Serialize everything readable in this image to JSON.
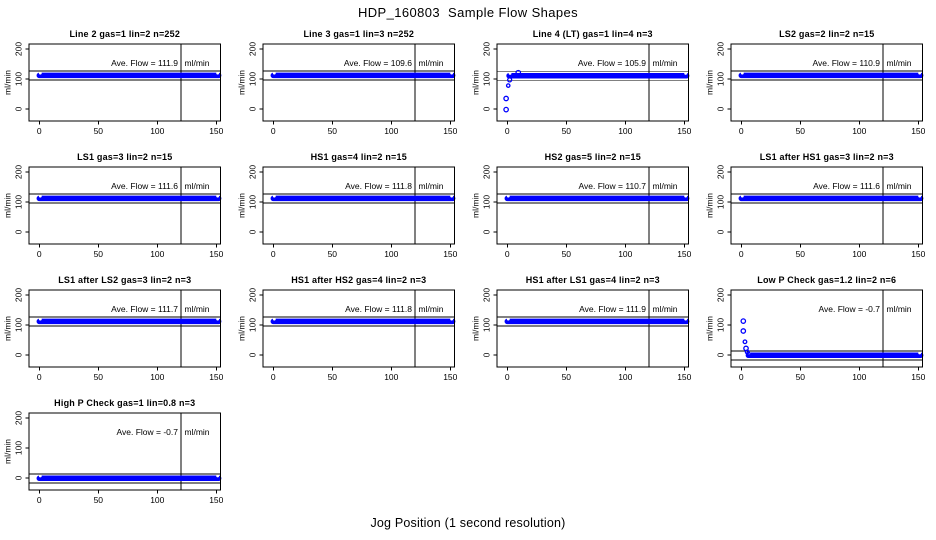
{
  "page": {
    "title": "HDP_160803  Sample Flow Shapes",
    "xlabel": "Jog Position (1 second resolution)"
  },
  "colors": {
    "points": "#0000ff",
    "axis": "#000000",
    "background": "#ffffff",
    "text": "#000000"
  },
  "subplot_defaults": {
    "ylabel": "ml/min",
    "unit": "ml/min",
    "annotation_label": "Ave. Flow =",
    "x_ticks": [
      0,
      50,
      100,
      150
    ],
    "y_ticks": [
      0,
      100,
      200
    ],
    "vline_x": 120,
    "xlim": [
      -8,
      153
    ],
    "ylim": [
      -45,
      217
    ],
    "xlabel": "Jog Position (1 second resolution)"
  },
  "chart_data": [
    {
      "type": "scatter",
      "title": "Line 2 gas=1 lin=2 n=252",
      "ave_flow": "111.9",
      "band": {
        "x_start": 0,
        "x_end": 152,
        "level": 112
      },
      "points": []
    },
    {
      "type": "scatter",
      "title": "Line 3 gas=1 lin=3 n=252",
      "ave_flow": "109.6",
      "band": {
        "x_start": 0,
        "x_end": 152,
        "level": 112
      },
      "points": []
    },
    {
      "type": "scatter",
      "title": "Line 4 (LT) gas=1 lin=4 n=3",
      "ave_flow": "105.9",
      "band": {
        "x_start": 1.5,
        "x_end": 152,
        "level": 111
      },
      "points": [
        [
          -1,
          -2
        ],
        [
          -1,
          35
        ],
        [
          0.8,
          78,
          1.7
        ],
        [
          2,
          97,
          2
        ],
        [
          9.3,
          121
        ]
      ]
    },
    {
      "type": "scatter",
      "title": "LS2 gas=2 lin=2 n=15",
      "ave_flow": "110.9",
      "band": {
        "x_start": 0,
        "x_end": 152,
        "level": 112
      },
      "points": []
    },
    {
      "type": "scatter",
      "title": "LS1 gas=3 lin=2 n=15",
      "ave_flow": "111.6",
      "band": {
        "x_start": 0,
        "x_end": 152,
        "level": 112
      },
      "points": []
    },
    {
      "type": "scatter",
      "title": "HS1 gas=4 lin=2 n=15",
      "ave_flow": "111.8",
      "band": {
        "x_start": 0,
        "x_end": 152,
        "level": 112
      },
      "points": []
    },
    {
      "type": "scatter",
      "title": "HS2 gas=5 lin=2 n=15",
      "ave_flow": "110.7",
      "band": {
        "x_start": 0,
        "x_end": 152,
        "level": 112
      },
      "points": []
    },
    {
      "type": "scatter",
      "title": "LS1 after HS1 gas=3 lin=2 n=3",
      "ave_flow": "111.6",
      "band": {
        "x_start": 0,
        "x_end": 152,
        "level": 112
      },
      "points": []
    },
    {
      "type": "scatter",
      "title": "LS1 after LS2 gas=3 lin=2 n=3",
      "ave_flow": "111.7",
      "band": {
        "x_start": 0,
        "x_end": 152,
        "level": 112
      },
      "points": []
    },
    {
      "type": "scatter",
      "title": "HS1 after HS2 gas=4 lin=2 n=3",
      "ave_flow": "111.8",
      "band": {
        "x_start": 0,
        "x_end": 152,
        "level": 112
      },
      "points": []
    },
    {
      "type": "scatter",
      "title": "HS1 after LS1 gas=4 lin=2 n=3",
      "ave_flow": "111.9",
      "band": {
        "x_start": 0,
        "x_end": 152,
        "level": 112
      },
      "points": []
    },
    {
      "type": "scatter",
      "title": "Low P Check gas=1.2 lin=2 n=6",
      "ave_flow": "-0.7",
      "band": {
        "x_start": 6,
        "x_end": 152,
        "level": -1
      },
      "points": [
        [
          1.7,
          113
        ],
        [
          1.7,
          80
        ],
        [
          3.1,
          44,
          1.8
        ],
        [
          4,
          22
        ],
        [
          5,
          10,
          1.8
        ],
        [
          6,
          4,
          1.8
        ]
      ]
    },
    {
      "type": "scatter",
      "title": "High P Check gas=1 lin=0.8 n=3",
      "ave_flow": "-0.7",
      "band": {
        "x_start": 0,
        "x_end": 152,
        "level": -1
      },
      "points": []
    }
  ]
}
